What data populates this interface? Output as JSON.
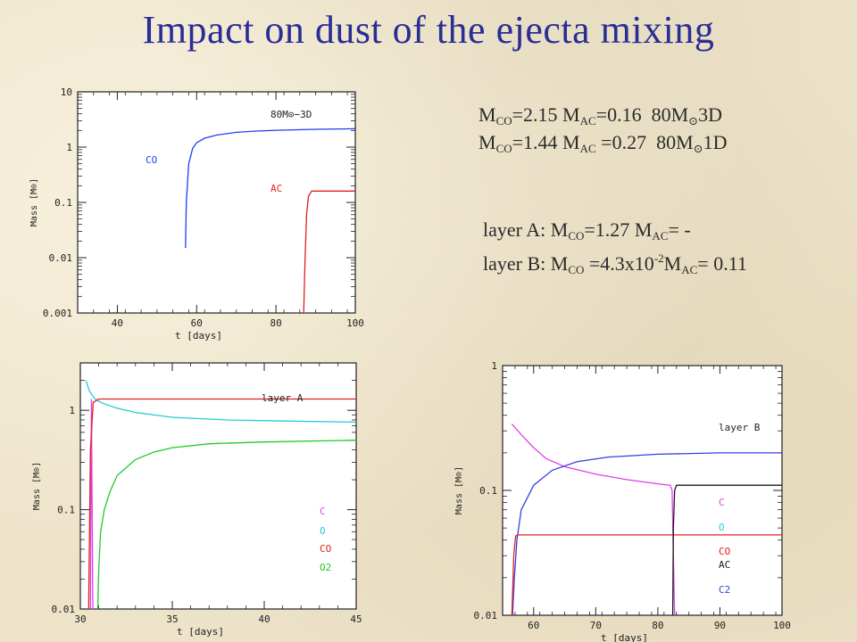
{
  "slide": {
    "title": "Impact on dust of the ejecta mixing"
  },
  "summary": {
    "line1": {
      "m": "M",
      "co_sub": "CO",
      "co_val": "=2.15",
      "ac_sub": "AC",
      "ac_val": "=0.16",
      "model": "80M",
      "sun": "⊙",
      "dim": "3D"
    },
    "line2": {
      "m": "M",
      "co_sub": "CO",
      "co_val": "=1.44",
      "ac_sub": "AC",
      "ac_val": " =0.27",
      "model": "80M",
      "sun": "⊙",
      "dim": "1D"
    },
    "layerA": {
      "label": "layer A: M",
      "co_sub": "CO",
      "co_val": "=1.27",
      "m": "M",
      "ac_sub": "AC",
      "ac_val": "= -"
    },
    "layerB": {
      "label": "layer B: M",
      "co_sub": "CO",
      "co_val": " =4.3x10",
      "exp": "-2",
      "m": "M",
      "ac_sub": "AC",
      "ac_val": "= 0.11"
    }
  },
  "chart_data": [
    {
      "type": "line",
      "xlabel": "t [days]",
      "ylabel": "Mass [M⊙]",
      "xlim": [
        30,
        100
      ],
      "ylim": [
        0.001,
        10
      ],
      "yscale": "log",
      "xticks": [
        40,
        60,
        80,
        100
      ],
      "yticks": [
        0.001,
        0.01,
        0.1,
        1,
        10
      ],
      "ytick_labels": [
        "0.001",
        "0.01",
        "0.1",
        "1",
        "10"
      ],
      "annotation": "80M⊙−3D",
      "series": [
        {
          "name": "CO",
          "color": "#1f3ff0",
          "x": [
            57.2,
            57.4,
            58,
            59,
            60,
            62,
            65,
            70,
            75,
            80,
            90,
            100
          ],
          "y": [
            0.015,
            0.1,
            0.5,
            0.95,
            1.2,
            1.45,
            1.65,
            1.85,
            1.95,
            2.02,
            2.1,
            2.15
          ]
        },
        {
          "name": "AC",
          "color": "#e0201c",
          "x": [
            87,
            87.3,
            87.7,
            88.2,
            89,
            100
          ],
          "y": [
            0.001,
            0.008,
            0.06,
            0.13,
            0.16,
            0.16
          ]
        }
      ]
    },
    {
      "type": "line",
      "title": "layer A",
      "xlabel": "t [days]",
      "ylabel": "Mass [M⊙]",
      "xlim": [
        30,
        45
      ],
      "ylim": [
        0.01,
        3
      ],
      "yscale": "log",
      "xticks": [
        30,
        35,
        40,
        45
      ],
      "yticks": [
        0.01,
        0.1,
        1
      ],
      "ytick_labels": [
        "0.01",
        "0.1",
        "1"
      ],
      "series": [
        {
          "name": "C",
          "color": "#e040e8",
          "x": [
            30.55,
            30.6,
            30.68
          ],
          "y": [
            0.01,
            1.3,
            0.01
          ]
        },
        {
          "name": "O",
          "color": "#22ccd6",
          "x": [
            30.3,
            30.5,
            30.8,
            31.2,
            32,
            33,
            35,
            38,
            41,
            45
          ],
          "y": [
            2.0,
            1.55,
            1.3,
            1.18,
            1.05,
            0.95,
            0.85,
            0.8,
            0.78,
            0.76
          ]
        },
        {
          "name": "CO",
          "color": "#e0201c",
          "x": [
            30.45,
            30.55,
            30.7,
            31,
            45
          ],
          "y": [
            0.01,
            0.4,
            1.2,
            1.3,
            1.3
          ]
        },
        {
          "name": "O2",
          "color": "#22c82a",
          "x": [
            30.95,
            31,
            31.1,
            31.3,
            31.6,
            32,
            33,
            34,
            35,
            37,
            40,
            45
          ],
          "y": [
            0.01,
            0.025,
            0.06,
            0.1,
            0.15,
            0.22,
            0.32,
            0.38,
            0.42,
            0.46,
            0.48,
            0.5
          ]
        }
      ]
    },
    {
      "type": "line",
      "title": "layer B",
      "xlabel": "t [days]",
      "ylabel": "Mass [M⊙]",
      "xlim": [
        55,
        100
      ],
      "ylim": [
        0.01,
        1
      ],
      "yscale": "log",
      "xticks": [
        60,
        70,
        80,
        90,
        100
      ],
      "yticks": [
        0.01,
        0.1,
        1
      ],
      "ytick_labels": [
        "0.01",
        "0.1",
        "1"
      ],
      "series": [
        {
          "name": "C",
          "color": "#e040e8",
          "x": [
            56.5,
            58,
            60,
            62,
            65,
            70,
            75,
            80,
            82,
            82.3,
            82.5,
            82.7
          ],
          "y": [
            0.34,
            0.28,
            0.22,
            0.18,
            0.155,
            0.135,
            0.122,
            0.113,
            0.11,
            0.1,
            0.03,
            0.01
          ]
        },
        {
          "name": "C2",
          "color": "#3340e0",
          "x": [
            56.6,
            56.9,
            57.3,
            58,
            60,
            63,
            67,
            72,
            80,
            90,
            100
          ],
          "y": [
            0.01,
            0.02,
            0.04,
            0.07,
            0.11,
            0.145,
            0.17,
            0.185,
            0.195,
            0.2,
            0.2
          ]
        },
        {
          "name": "O",
          "color": "#22ccd6",
          "x": [],
          "y": []
        },
        {
          "name": "CO",
          "color": "#e0201c",
          "x": [
            56.5,
            56.8,
            57.1,
            57.4,
            100
          ],
          "y": [
            0.01,
            0.03,
            0.043,
            0.044,
            0.044
          ]
        },
        {
          "name": "AC",
          "color": "#1a1a1a",
          "x": [
            82.4,
            82.5,
            82.7,
            83,
            100
          ],
          "y": [
            0.01,
            0.05,
            0.1,
            0.11,
            0.11
          ]
        }
      ]
    }
  ]
}
